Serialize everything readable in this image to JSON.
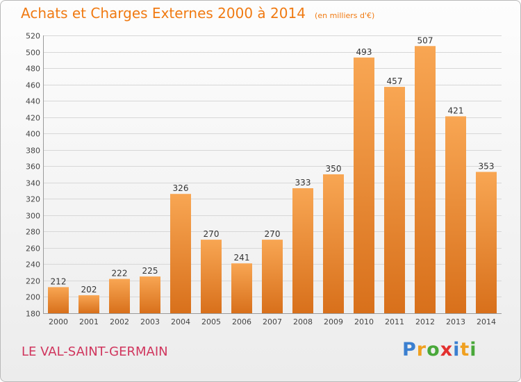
{
  "title": "Achats et Charges Externes 2000 à 2014",
  "subtitle": "(en milliers d'€)",
  "location": "LE VAL-SAINT-GERMAIN",
  "logo": {
    "letters": [
      {
        "ch": "P",
        "color": "#3a7fd0"
      },
      {
        "ch": "r",
        "color": "#f0a020"
      },
      {
        "ch": "o",
        "color": "#49a83a"
      },
      {
        "ch": "x",
        "color": "#e3302f"
      },
      {
        "ch": "i",
        "color": "#3a7fd0"
      },
      {
        "ch": "t",
        "color": "#f0a020"
      },
      {
        "ch": "i",
        "color": "#49a83a"
      }
    ]
  },
  "colors": {
    "bar_top": "#f8a653",
    "bar_bottom": "#d8701b",
    "title": "#f07a12",
    "location": "#d0355d"
  },
  "chart_data": {
    "type": "bar",
    "categories": [
      "2000",
      "2001",
      "2002",
      "2003",
      "2004",
      "2005",
      "2006",
      "2007",
      "2008",
      "2009",
      "2010",
      "2011",
      "2012",
      "2013",
      "2014"
    ],
    "values": [
      212,
      202,
      222,
      225,
      326,
      270,
      241,
      270,
      333,
      350,
      493,
      457,
      507,
      421,
      353
    ],
    "ylim": [
      180,
      520
    ],
    "yticks": [
      180,
      200,
      220,
      240,
      260,
      280,
      300,
      320,
      340,
      360,
      380,
      400,
      420,
      440,
      460,
      480,
      500,
      520
    ],
    "grid": true,
    "data_labels": true
  }
}
